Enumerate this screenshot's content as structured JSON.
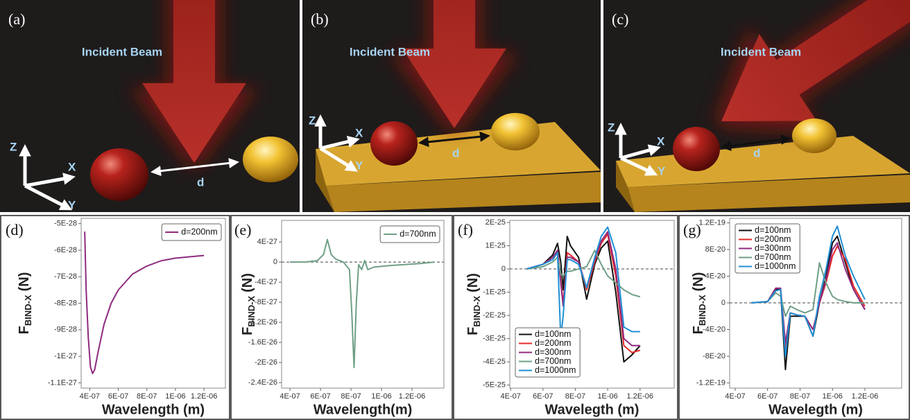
{
  "illustrations": [
    {
      "label": "(a)",
      "beam": "Incident Beam",
      "axes": {
        "x": "X",
        "y": "Y",
        "z": "Z"
      },
      "gap": "d"
    },
    {
      "label": "(b)",
      "beam": "Incident Beam",
      "axes": {
        "x": "X",
        "y": "Y",
        "z": "Z"
      },
      "gap": "d"
    },
    {
      "label": "(c)",
      "beam": "Incident Beam",
      "axes": {
        "x": "X",
        "y": "Y",
        "z": "Z"
      },
      "gap": "d"
    }
  ],
  "chart_data": [
    {
      "type": "line",
      "panel_label": "(d)",
      "xlabel": "Wavelength (m)",
      "ylabel": {
        "symbol": "F",
        "subscript": "BIND-X",
        "unit": "(N)"
      },
      "xlim": [
        3.4e-07,
        1.35e-06
      ],
      "ylim": [
        -1.12e-27,
        -4.8e-28
      ],
      "xticks": [
        {
          "value": 4e-07,
          "label": "4E-07"
        },
        {
          "value": 6e-07,
          "label": "6E-07"
        },
        {
          "value": 8e-07,
          "label": "8E-07"
        },
        {
          "value": 1e-06,
          "label": "1E-06"
        },
        {
          "value": 1.2e-06,
          "label": "1.2E-06"
        }
      ],
      "yticks": [
        {
          "value": -5e-28,
          "label": "-5E-28"
        },
        {
          "value": -6e-28,
          "label": "-6E-28"
        },
        {
          "value": -7e-28,
          "label": "-7E-28"
        },
        {
          "value": -8e-28,
          "label": "-8E-28"
        },
        {
          "value": -9e-28,
          "label": "-9E-28"
        },
        {
          "value": -1e-27,
          "label": "-1E-27"
        },
        {
          "value": -1.1e-27,
          "label": "-1.1E-27"
        }
      ],
      "legend": "upper right",
      "zero_line": false,
      "x": [
        3.65e-07,
        3.75e-07,
        3.9e-07,
        4.05e-07,
        4.2e-07,
        4.35e-07,
        4.6e-07,
        5e-07,
        5.5e-07,
        6e-07,
        7e-07,
        8e-07,
        9e-07,
        1e-06,
        1.1e-06,
        1.2e-06
      ],
      "series": [
        {
          "name": "d=200nm",
          "color": "#8e2a7e",
          "values": [
            -5.3e-28,
            -7.5e-28,
            -9.3e-28,
            -1.04e-27,
            -1.065e-27,
            -1.05e-27,
            -9.8e-28,
            -8.8e-28,
            -8e-28,
            -7.5e-28,
            -6.9e-28,
            -6.6e-28,
            -6.4e-28,
            -6.3e-28,
            -6.25e-28,
            -6.2e-28
          ]
        }
      ]
    },
    {
      "type": "line",
      "panel_label": "(e)",
      "xlabel": "Wavelength(m)",
      "ylabel": {
        "symbol": "F",
        "subscript": "BIND-X",
        "unit": "(N)"
      },
      "xlim": [
        3.45e-07,
        1.409e-06
      ],
      "ylim": [
        -2.51e-26,
        8.3e-27
      ],
      "xticks": [
        {
          "value": 4e-07,
          "label": "4E-07"
        },
        {
          "value": 6e-07,
          "label": "6E-07"
        },
        {
          "value": 8e-07,
          "label": "8E-07"
        },
        {
          "value": 1e-06,
          "label": "1E-06"
        },
        {
          "value": 1.2e-06,
          "label": "1.2E-06"
        }
      ],
      "yticks": [
        {
          "value": 4e-27,
          "label": "4E-27"
        },
        0,
        {
          "value": -4e-27,
          "label": "-4E-27"
        },
        {
          "value": -8e-27,
          "label": "-8E-27"
        },
        {
          "value": -1.2e-26,
          "label": "-1.2E-26"
        },
        {
          "value": -1.6e-26,
          "label": "-1.6E-26"
        },
        {
          "value": -2e-26,
          "label": "-2E-26"
        },
        {
          "value": -2.4e-26,
          "label": "-2.4E-26"
        }
      ],
      "legend": "upper right",
      "zero_line": true,
      "x": [
        4e-07,
        5e-07,
        5.8e-07,
        6.2e-07,
        6.45e-07,
        6.7e-07,
        7e-07,
        7.5e-07,
        7.9e-07,
        8.05e-07,
        8.2e-07,
        8.35e-07,
        8.5e-07,
        8.7e-07,
        8.9e-07,
        9.1e-07,
        9.5e-07,
        1.05e-06,
        1.15e-06,
        1.25e-06,
        1.35e-06
      ],
      "series": [
        {
          "name": "d=700nm",
          "color": "#6f9f86",
          "values": [
            0,
            0,
            3e-28,
            1.5e-27,
            4.5e-27,
            1.5e-27,
            6e-28,
            0,
            -1.5e-27,
            -1e-26,
            -2.1e-26,
            -8e-27,
            -5e-28,
            -1.5e-27,
            3e-28,
            -1.5e-27,
            -1e-27,
            -7e-28,
            -5e-28,
            -3e-28,
            0
          ]
        }
      ]
    },
    {
      "type": "line",
      "panel_label": "(f)",
      "xlabel": "Wavelegth (m)",
      "ylabel": {
        "symbol": "F",
        "subscript": "BIND-X",
        "unit": "(N)"
      },
      "xlim": [
        3.95e-07,
        1.411e-06
      ],
      "ylim": [
        -5.13e-25,
        2.09e-25
      ],
      "xticks": [
        {
          "value": 4e-07,
          "label": "4E-07"
        },
        {
          "value": 6e-07,
          "label": "6E-07"
        },
        {
          "value": 8e-07,
          "label": "8E-07"
        },
        {
          "value": 1e-06,
          "label": "1E-06"
        },
        {
          "value": 1.2e-06,
          "label": "1.2E-06"
        }
      ],
      "yticks": [
        {
          "value": 2e-25,
          "label": "2E-25"
        },
        {
          "value": 1e-25,
          "label": "1E-25"
        },
        0,
        {
          "value": -1e-25,
          "label": "-1E-25"
        },
        {
          "value": -2e-25,
          "label": "-2E-25"
        },
        {
          "value": -3e-25,
          "label": "-3E-25"
        },
        {
          "value": -4e-25,
          "label": "-4E-25"
        },
        {
          "value": -5e-25,
          "label": "-5E-25"
        }
      ],
      "legend": "lower left",
      "zero_line": true,
      "x": [
        5e-07,
        6e-07,
        6.6e-07,
        6.9e-07,
        7.1e-07,
        7.25e-07,
        7.5e-07,
        7.7e-07,
        8.2e-07,
        8.7e-07,
        9.2e-07,
        9.6e-07,
        1e-06,
        1.05e-06,
        1.1e-06,
        1.15e-06,
        1.2e-06
      ],
      "series": [
        {
          "name": "d=100nm",
          "color": "#111111",
          "values": [
            0,
            2e-26,
            6e-26,
            1.1e-25,
            3e-26,
            -9e-26,
            1.4e-25,
            1e-25,
            5e-26,
            -1.3e-25,
            2e-26,
            9e-26,
            1.2e-25,
            -1e-25,
            -4e-25,
            -3.7e-25,
            -3.3e-25
          ]
        },
        {
          "name": "d=200nm",
          "color": "#e52a2a",
          "values": [
            0,
            2e-26,
            5e-26,
            8e-26,
            -5e-26,
            -1.5e-25,
            7e-26,
            6e-26,
            3e-26,
            -9e-26,
            3e-26,
            1.1e-25,
            1.5e-25,
            -3e-26,
            -3.3e-25,
            -3.6e-25,
            -3.5e-25
          ]
        },
        {
          "name": "d=300nm",
          "color": "#8e2a7e",
          "values": [
            0,
            2e-26,
            5e-26,
            8e-26,
            -6e-26,
            -1.6e-25,
            5e-26,
            5e-26,
            3e-26,
            -8e-26,
            4e-26,
            1.2e-25,
            1.6e-25,
            0,
            -3e-25,
            -3.3e-25,
            -3.3e-25
          ]
        },
        {
          "name": "d=700nm",
          "color": "#6f9f86",
          "values": [
            0,
            1e-26,
            3e-26,
            5e-26,
            -2e-26,
            -3e-26,
            -1e-26,
            -1e-26,
            0,
            1e-26,
            8e-26,
            2e-26,
            -3e-26,
            -6e-26,
            -9e-26,
            -1.1e-25,
            -1.2e-25
          ]
        },
        {
          "name": "d=1000nm",
          "color": "#1f8fd6",
          "values": [
            0,
            2e-26,
            4e-26,
            7e-26,
            -3e-25,
            -2e-25,
            4e-26,
            4e-26,
            2e-26,
            -8e-26,
            5e-26,
            1.4e-25,
            1.8e-25,
            7e-26,
            -2.5e-25,
            -2.7e-25,
            -2.7e-25
          ]
        }
      ]
    },
    {
      "type": "line",
      "panel_label": "(g)",
      "xlabel": "Wavelegth (m)",
      "ylabel": {
        "symbol": "F",
        "subscript": "BIND-X",
        "unit": "(N)"
      },
      "xlim": [
        3.66e-07,
        1.427e-06
      ],
      "ylim": [
        -1.278e-19,
        1.268e-19
      ],
      "xticks": [
        {
          "value": 4e-07,
          "label": "4E-07"
        },
        {
          "value": 6e-07,
          "label": "6E-07"
        },
        {
          "value": 8e-07,
          "label": "8E-07"
        },
        {
          "value": 1e-06,
          "label": "1E-06"
        },
        {
          "value": 1.2e-06,
          "label": "1.2E-06"
        }
      ],
      "yticks": [
        {
          "value": 1.2e-19,
          "label": "1.2E-19"
        },
        {
          "value": 8e-20,
          "label": "8E-20"
        },
        {
          "value": 4e-20,
          "label": "4E-20"
        },
        0,
        {
          "value": -4e-20,
          "label": "-4E-20"
        },
        {
          "value": -8e-20,
          "label": "-8E-20"
        },
        {
          "value": -1.2e-19,
          "label": "-1.2E-19"
        }
      ],
      "legend": "upper left",
      "zero_line": true,
      "x": [
        5e-07,
        6e-07,
        6.5e-07,
        6.8e-07,
        7.1e-07,
        7.4e-07,
        7.8e-07,
        8.3e-07,
        8.8e-07,
        9.2e-07,
        9.6e-07,
        1e-06,
        1.03e-06,
        1.08e-06,
        1.13e-06,
        1.2e-06
      ],
      "series": [
        {
          "name": "d=100nm",
          "color": "#111111",
          "values": [
            0,
            2e-21,
            2e-20,
            2e-20,
            -1e-19,
            -2e-20,
            -2e-20,
            -2e-20,
            -5e-20,
            0,
            4e-20,
            9e-20,
            1e-19,
            6e-20,
            2e-20,
            -1e-20
          ]
        },
        {
          "name": "d=200nm",
          "color": "#e52a2a",
          "values": [
            0,
            2e-21,
            2.2e-20,
            2.2e-20,
            -7e-20,
            -1.5e-20,
            -1.8e-20,
            -2e-20,
            -4e-20,
            0,
            3e-20,
            7e-20,
            8.5e-20,
            6.5e-20,
            2.5e-20,
            -5e-21
          ]
        },
        {
          "name": "d=300nm",
          "color": "#8e2a7e",
          "values": [
            0,
            2e-21,
            2.2e-20,
            2.2e-20,
            -6e-20,
            -1.5e-20,
            -1.8e-20,
            -2e-20,
            -4e-20,
            0,
            3.5e-20,
            8e-20,
            9e-20,
            5e-20,
            2e-20,
            -1e-20
          ]
        },
        {
          "name": "d=700nm",
          "color": "#6f9f86",
          "values": [
            0,
            2e-21,
            1.5e-20,
            1e-20,
            -2e-20,
            -5e-21,
            -1e-20,
            -1.5e-20,
            -1e-20,
            6e-20,
            3e-20,
            1e-20,
            5e-21,
            2e-21,
            0,
            0
          ]
        },
        {
          "name": "d=1000nm",
          "color": "#1f8fd6",
          "values": [
            0,
            2e-21,
            1.8e-20,
            2e-20,
            -8e-20,
            -1.5e-20,
            -1.8e-20,
            -2e-20,
            -5e-20,
            1e-20,
            5e-20,
            1e-19,
            1.15e-19,
            7e-20,
            4e-20,
            5e-21
          ]
        }
      ]
    }
  ]
}
